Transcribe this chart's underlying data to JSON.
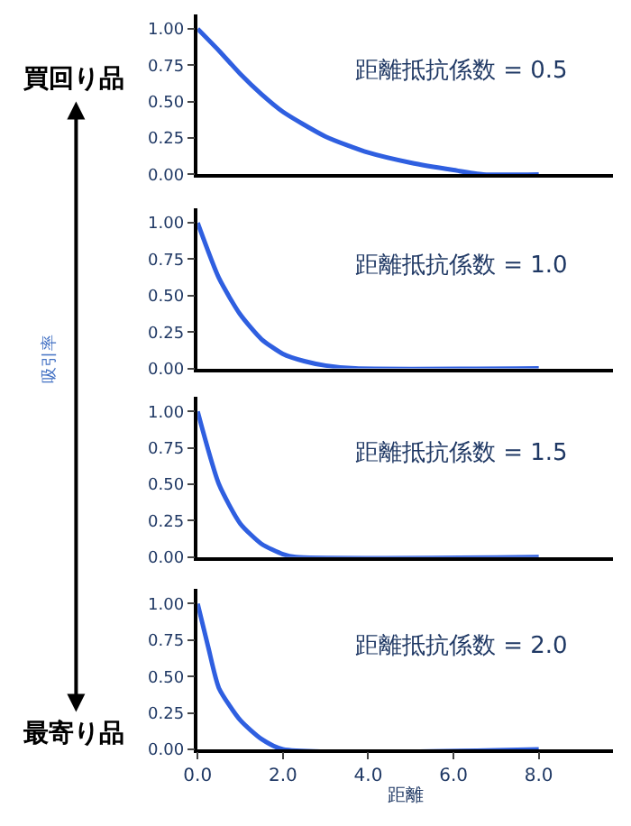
{
  "chart_data": [
    {
      "type": "line",
      "title": "距離抵抗係数 = 0.5",
      "annotations": [
        "買回り品"
      ],
      "x": [
        0,
        0.5,
        1,
        1.5,
        2,
        3,
        4,
        5,
        6,
        6.7,
        8
      ],
      "series": [
        {
          "color": "#2f5fe0",
          "values": [
            1.0,
            0.85,
            0.69,
            0.55,
            0.43,
            0.26,
            0.15,
            0.08,
            0.03,
            0,
            0
          ]
        }
      ],
      "xlim": [
        0,
        9.75
      ],
      "ylim": [
        0,
        1.1
      ],
      "yticks": [
        {
          "value": 0,
          "label": "0.00"
        },
        {
          "value": 0.25,
          "label": "0.25"
        },
        {
          "value": 0.5,
          "label": "0.50"
        },
        {
          "value": 0.75,
          "label": "0.75"
        },
        {
          "value": 1,
          "label": "1.00"
        }
      ],
      "tick_labels": "y",
      "marker": "none",
      "line_style": "solid"
    },
    {
      "type": "line",
      "title": "距離抵抗係数 = 1.0",
      "ylabel": "吸引率",
      "x": [
        0,
        0.5,
        1,
        1.5,
        2,
        2.5,
        3,
        3.7,
        8
      ],
      "series": [
        {
          "color": "#2f5fe0",
          "values": [
            1.0,
            0.62,
            0.37,
            0.2,
            0.1,
            0.05,
            0.02,
            0,
            0
          ]
        }
      ],
      "xlim": [
        0,
        9.75
      ],
      "ylim": [
        0,
        1.1
      ],
      "yticks": [
        {
          "value": 0,
          "label": "0.00"
        },
        {
          "value": 0.25,
          "label": "0.25"
        },
        {
          "value": 0.5,
          "label": "0.50"
        },
        {
          "value": 0.75,
          "label": "0.75"
        },
        {
          "value": 1,
          "label": "1.00"
        }
      ],
      "tick_labels": "y",
      "marker": "none",
      "line_style": "solid"
    },
    {
      "type": "line",
      "title": "距離抵抗係数 = 1.5",
      "x": [
        0,
        0.5,
        1,
        1.5,
        2,
        2.3,
        8
      ],
      "series": [
        {
          "color": "#2f5fe0",
          "values": [
            1.0,
            0.5,
            0.23,
            0.09,
            0.02,
            0,
            0
          ]
        }
      ],
      "xlim": [
        0,
        9.75
      ],
      "ylim": [
        0,
        1.1
      ],
      "yticks": [
        {
          "value": 0,
          "label": "0.00"
        },
        {
          "value": 0.25,
          "label": "0.25"
        },
        {
          "value": 0.5,
          "label": "0.50"
        },
        {
          "value": 0.75,
          "label": "0.75"
        },
        {
          "value": 1,
          "label": "1.00"
        }
      ],
      "tick_labels": "y",
      "marker": "none",
      "line_style": "solid"
    },
    {
      "type": "line",
      "title": "距離抵抗係数 = 2.0",
      "xlabel": "距離",
      "annotations": [
        "最寄り品"
      ],
      "x": [
        0,
        0.25,
        0.5,
        1,
        1.5,
        2,
        8
      ],
      "series": [
        {
          "color": "#2f5fe0",
          "values": [
            1.0,
            0.7,
            0.42,
            0.2,
            0.07,
            0,
            0
          ]
        }
      ],
      "xlim": [
        0,
        9.75
      ],
      "xticks": [
        {
          "value": 0,
          "label": "0.0"
        },
        {
          "value": 2,
          "label": "2.0"
        },
        {
          "value": 4,
          "label": "4.0"
        },
        {
          "value": 6,
          "label": "6.0"
        },
        {
          "value": 8,
          "label": "8.0"
        }
      ],
      "ylim": [
        0,
        1.1
      ],
      "yticks": [
        {
          "value": 0,
          "label": "0.00"
        },
        {
          "value": 0.25,
          "label": "0.25"
        },
        {
          "value": 0.5,
          "label": "0.50"
        },
        {
          "value": 0.75,
          "label": "0.75"
        },
        {
          "value": 1,
          "label": "1.00"
        }
      ],
      "marker": "none",
      "line_style": "solid"
    }
  ]
}
